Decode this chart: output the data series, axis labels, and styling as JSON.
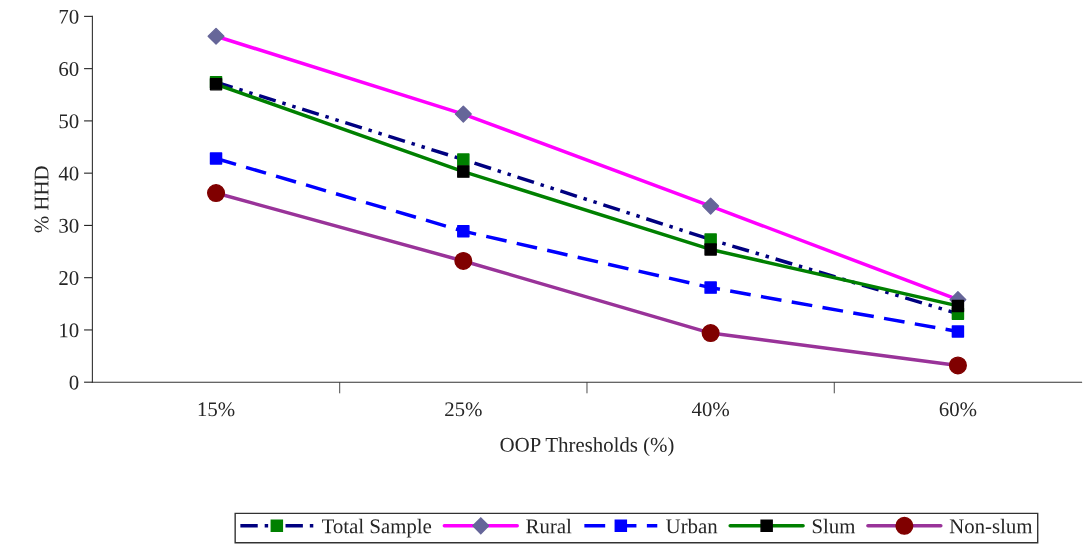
{
  "chart_data": {
    "type": "line",
    "xlabel": "OOP Thresholds (%)",
    "ylabel": "% HHD",
    "categories": [
      "15%",
      "25%",
      "40%",
      "60%"
    ],
    "series": [
      {
        "name": "Total Sample",
        "color": "#000080",
        "colors": [
          "#008000",
          "#008000",
          "#008000",
          "#008000"
        ],
        "marker": "square",
        "line_style": "dashdot",
        "values": [
          57.4,
          42.6,
          27.3,
          13.1
        ]
      },
      {
        "name": "Rural",
        "color": "#ff00ff",
        "colors": [
          "#666699",
          "#666699",
          "#666699",
          "#666699"
        ],
        "marker": "diamond",
        "line_style": "solid",
        "values": [
          66.2,
          51.3,
          33.7,
          15.8
        ]
      },
      {
        "name": "Urban",
        "color": "#0000ff",
        "colors": [
          "#0000ff",
          "#0000ff",
          "#0000ff",
          "#0000ff"
        ],
        "marker": "square",
        "line_style": "dashed",
        "values": [
          42.8,
          28.9,
          18.1,
          9.7
        ]
      },
      {
        "name": "Slum",
        "color": "#008000",
        "colors": [
          "#000000",
          "#000000",
          "#000000",
          "#000000"
        ],
        "marker": "square",
        "line_style": "solid",
        "values": [
          57.0,
          40.3,
          25.4,
          14.6
        ]
      },
      {
        "name": "Non-slum",
        "color": "#993399",
        "colors": [
          "#800000",
          "#800000",
          "#800000",
          "#800000"
        ],
        "marker": "circle",
        "line_style": "solid",
        "values": [
          36.2,
          23.2,
          9.4,
          3.2
        ]
      }
    ],
    "ylim": [
      0,
      70
    ],
    "yticks": [
      0,
      10,
      20,
      30,
      40,
      50,
      60,
      70
    ],
    "grid": false,
    "legend": "bottom"
  }
}
